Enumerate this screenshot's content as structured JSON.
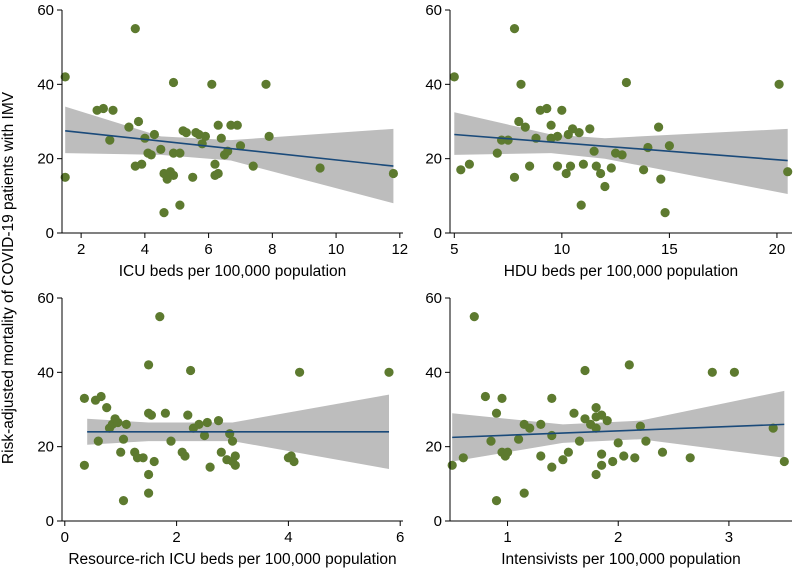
{
  "y_axis_title": "Risk-adjusted mortality of COVID-19 patients with IMV",
  "colors": {
    "point": "#5d7a2f",
    "fit_line": "#1a4a7a",
    "ci_band": "#bdbdbd",
    "axis": "#000000"
  },
  "chart_data": [
    {
      "type": "scatter",
      "xlabel": "ICU beds per 100,000 population",
      "ylabel": "Risk-adjusted mortality of COVID-19 patients with IMV",
      "xlim": [
        1.4,
        12.1
      ],
      "ylim": [
        0,
        60
      ],
      "xticks": [
        2,
        4,
        6,
        8,
        10,
        12
      ],
      "yticks": [
        0,
        20,
        40,
        60
      ],
      "fit": {
        "x": [
          1.5,
          11.8
        ],
        "y": [
          27.5,
          18.0
        ]
      },
      "ci": {
        "x": [
          1.5,
          4.5,
          6.7,
          11.8
        ],
        "upper": [
          34,
          26,
          25,
          28
        ],
        "lower": [
          21.5,
          21,
          19.5,
          8
        ]
      },
      "points": [
        [
          1.5,
          42
        ],
        [
          1.5,
          15
        ],
        [
          2.5,
          33
        ],
        [
          2.7,
          33.5
        ],
        [
          3.0,
          33
        ],
        [
          2.9,
          25
        ],
        [
          3.5,
          28.5
        ],
        [
          3.7,
          55
        ],
        [
          3.8,
          30
        ],
        [
          3.7,
          18
        ],
        [
          3.9,
          18.5
        ],
        [
          4.0,
          25.5
        ],
        [
          4.2,
          21
        ],
        [
          4.3,
          26.5
        ],
        [
          4.5,
          22.5
        ],
        [
          4.6,
          16
        ],
        [
          4.7,
          14.5
        ],
        [
          4.8,
          16.5
        ],
        [
          4.9,
          21.5
        ],
        [
          4.9,
          40.5
        ],
        [
          4.9,
          15.5
        ],
        [
          5.1,
          21.5
        ],
        [
          5.2,
          27.5
        ],
        [
          5.3,
          27
        ],
        [
          5.1,
          7.5
        ],
        [
          4.6,
          5.5
        ],
        [
          5.5,
          15
        ],
        [
          5.6,
          27
        ],
        [
          5.7,
          26.5
        ],
        [
          5.9,
          26
        ],
        [
          6.1,
          40
        ],
        [
          6.2,
          18.5
        ],
        [
          6.3,
          16
        ],
        [
          6.3,
          29
        ],
        [
          6.4,
          25.5
        ],
        [
          6.5,
          21
        ],
        [
          6.6,
          22
        ],
        [
          6.7,
          29
        ],
        [
          6.9,
          29
        ],
        [
          7.0,
          23.5
        ],
        [
          7.4,
          18
        ],
        [
          7.8,
          40
        ],
        [
          7.9,
          26
        ],
        [
          9.5,
          17.5
        ],
        [
          11.8,
          16
        ],
        [
          6.2,
          15.5
        ],
        [
          5.8,
          24
        ],
        [
          4.1,
          21.5
        ]
      ]
    },
    {
      "type": "scatter",
      "xlabel": "HDU beds per 100,000 population",
      "ylabel": "",
      "xlim": [
        4.8,
        20.7
      ],
      "ylim": [
        0,
        60
      ],
      "xticks": [
        5,
        10,
        15,
        20
      ],
      "yticks": [
        0,
        20,
        40,
        60
      ],
      "fit": {
        "x": [
          5.0,
          20.5
        ],
        "y": [
          26.5,
          19.5
        ]
      },
      "ci": {
        "x": [
          5.0,
          9.5,
          12.0,
          20.5
        ],
        "upper": [
          32.5,
          26.5,
          25.5,
          28
        ],
        "lower": [
          21,
          21.5,
          20,
          10.5
        ]
      },
      "points": [
        [
          5.0,
          42
        ],
        [
          5.3,
          17
        ],
        [
          5.7,
          18.5
        ],
        [
          7.0,
          21.5
        ],
        [
          7.2,
          25
        ],
        [
          7.5,
          25
        ],
        [
          7.8,
          55
        ],
        [
          8.1,
          40
        ],
        [
          8.0,
          30
        ],
        [
          8.3,
          28.5
        ],
        [
          8.5,
          18
        ],
        [
          7.8,
          15
        ],
        [
          8.8,
          25.5
        ],
        [
          9.0,
          33
        ],
        [
          9.3,
          33.5
        ],
        [
          9.5,
          29
        ],
        [
          9.5,
          25.5
        ],
        [
          9.8,
          26
        ],
        [
          10.0,
          33
        ],
        [
          9.8,
          18
        ],
        [
          10.2,
          16
        ],
        [
          10.3,
          26.5
        ],
        [
          10.5,
          28
        ],
        [
          10.8,
          27
        ],
        [
          10.9,
          7.5
        ],
        [
          11.0,
          18.5
        ],
        [
          11.3,
          28
        ],
        [
          11.5,
          22
        ],
        [
          11.8,
          16
        ],
        [
          12.0,
          12.5
        ],
        [
          12.3,
          17.5
        ],
        [
          12.5,
          21.5
        ],
        [
          12.8,
          21
        ],
        [
          13.0,
          40.5
        ],
        [
          13.8,
          17
        ],
        [
          14.0,
          23
        ],
        [
          14.5,
          28.5
        ],
        [
          14.6,
          14.5
        ],
        [
          14.8,
          5.5
        ],
        [
          15.0,
          23.5
        ],
        [
          20.1,
          40
        ],
        [
          20.5,
          16.5
        ],
        [
          10.4,
          18
        ],
        [
          11.6,
          18
        ]
      ]
    },
    {
      "type": "scatter",
      "xlabel": "Resource-rich ICU beds per 100,000 population",
      "ylabel": "",
      "xlim": [
        -0.05,
        6.05
      ],
      "ylim": [
        0,
        60
      ],
      "xticks": [
        0,
        2,
        4,
        6
      ],
      "yticks": [
        0,
        20,
        40,
        60
      ],
      "fit": {
        "x": [
          0.4,
          5.8
        ],
        "y": [
          24.0,
          24.0
        ]
      },
      "ci": {
        "x": [
          0.4,
          1.5,
          3.0,
          5.8
        ],
        "upper": [
          27.5,
          26.5,
          26.5,
          34
        ],
        "lower": [
          20.5,
          21.5,
          21.5,
          14
        ]
      },
      "points": [
        [
          0.35,
          33
        ],
        [
          0.35,
          15
        ],
        [
          0.55,
          32.5
        ],
        [
          0.6,
          21.5
        ],
        [
          0.65,
          33.5
        ],
        [
          0.75,
          30.5
        ],
        [
          0.8,
          25
        ],
        [
          0.85,
          26
        ],
        [
          0.9,
          27.5
        ],
        [
          0.95,
          26.5
        ],
        [
          1.0,
          18.5
        ],
        [
          1.05,
          22
        ],
        [
          1.05,
          5.5
        ],
        [
          1.1,
          26
        ],
        [
          1.25,
          18.5
        ],
        [
          1.3,
          17
        ],
        [
          1.4,
          17
        ],
        [
          1.5,
          42
        ],
        [
          1.5,
          29
        ],
        [
          1.55,
          28.5
        ],
        [
          1.5,
          12.5
        ],
        [
          1.5,
          7.5
        ],
        [
          1.6,
          16
        ],
        [
          1.7,
          55
        ],
        [
          1.8,
          29
        ],
        [
          1.9,
          21.5
        ],
        [
          2.1,
          18.5
        ],
        [
          2.15,
          17.5
        ],
        [
          2.2,
          28.5
        ],
        [
          2.25,
          40.5
        ],
        [
          2.3,
          25
        ],
        [
          2.4,
          26
        ],
        [
          2.5,
          23
        ],
        [
          2.55,
          26.5
        ],
        [
          2.6,
          14.5
        ],
        [
          2.75,
          27
        ],
        [
          2.8,
          18.5
        ],
        [
          2.9,
          16.5
        ],
        [
          2.95,
          23.5
        ],
        [
          3.0,
          21.5
        ],
        [
          3.0,
          16
        ],
        [
          3.05,
          15
        ],
        [
          3.05,
          17.5
        ],
        [
          4.0,
          17
        ],
        [
          4.2,
          40
        ],
        [
          4.05,
          17.5
        ],
        [
          4.1,
          16
        ],
        [
          5.8,
          40
        ]
      ]
    },
    {
      "type": "scatter",
      "xlabel": "Intensivists per 100,000 population",
      "ylabel": "",
      "xlim": [
        0.48,
        3.57
      ],
      "ylim": [
        0,
        60
      ],
      "xticks": [
        1,
        2,
        3
      ],
      "yticks": [
        0,
        20,
        40,
        60
      ],
      "fit": {
        "x": [
          0.5,
          3.5
        ],
        "y": [
          22.5,
          26.0
        ]
      },
      "ci": {
        "x": [
          0.5,
          1.5,
          2.2,
          3.5
        ],
        "upper": [
          29,
          26,
          27,
          35
        ],
        "lower": [
          16,
          21,
          22,
          17
        ]
      },
      "points": [
        [
          0.5,
          15
        ],
        [
          0.6,
          17
        ],
        [
          0.7,
          55
        ],
        [
          0.8,
          33.5
        ],
        [
          0.85,
          21.5
        ],
        [
          0.9,
          29
        ],
        [
          0.95,
          33
        ],
        [
          0.95,
          18.5
        ],
        [
          0.98,
          17.5
        ],
        [
          1.0,
          18.5
        ],
        [
          0.9,
          5.5
        ],
        [
          1.1,
          22
        ],
        [
          1.15,
          26
        ],
        [
          1.2,
          25
        ],
        [
          1.15,
          7.5
        ],
        [
          1.3,
          17.5
        ],
        [
          1.3,
          26
        ],
        [
          1.4,
          23
        ],
        [
          1.4,
          33
        ],
        [
          1.4,
          14.5
        ],
        [
          1.5,
          16.5
        ],
        [
          1.55,
          18.5
        ],
        [
          1.6,
          29
        ],
        [
          1.65,
          21.5
        ],
        [
          1.7,
          40.5
        ],
        [
          1.7,
          27.5
        ],
        [
          1.75,
          26
        ],
        [
          1.8,
          28
        ],
        [
          1.8,
          30.5
        ],
        [
          1.8,
          25
        ],
        [
          1.85,
          18
        ],
        [
          1.85,
          28.5
        ],
        [
          1.9,
          27
        ],
        [
          1.85,
          15
        ],
        [
          1.95,
          16
        ],
        [
          2.0,
          21
        ],
        [
          2.05,
          17.5
        ],
        [
          2.1,
          42
        ],
        [
          2.15,
          17
        ],
        [
          2.2,
          25.5
        ],
        [
          2.25,
          21.5
        ],
        [
          2.4,
          18.5
        ],
        [
          2.65,
          17
        ],
        [
          2.85,
          40
        ],
        [
          3.05,
          40
        ],
        [
          3.4,
          25
        ],
        [
          3.5,
          16
        ],
        [
          1.8,
          12.5
        ]
      ]
    }
  ]
}
